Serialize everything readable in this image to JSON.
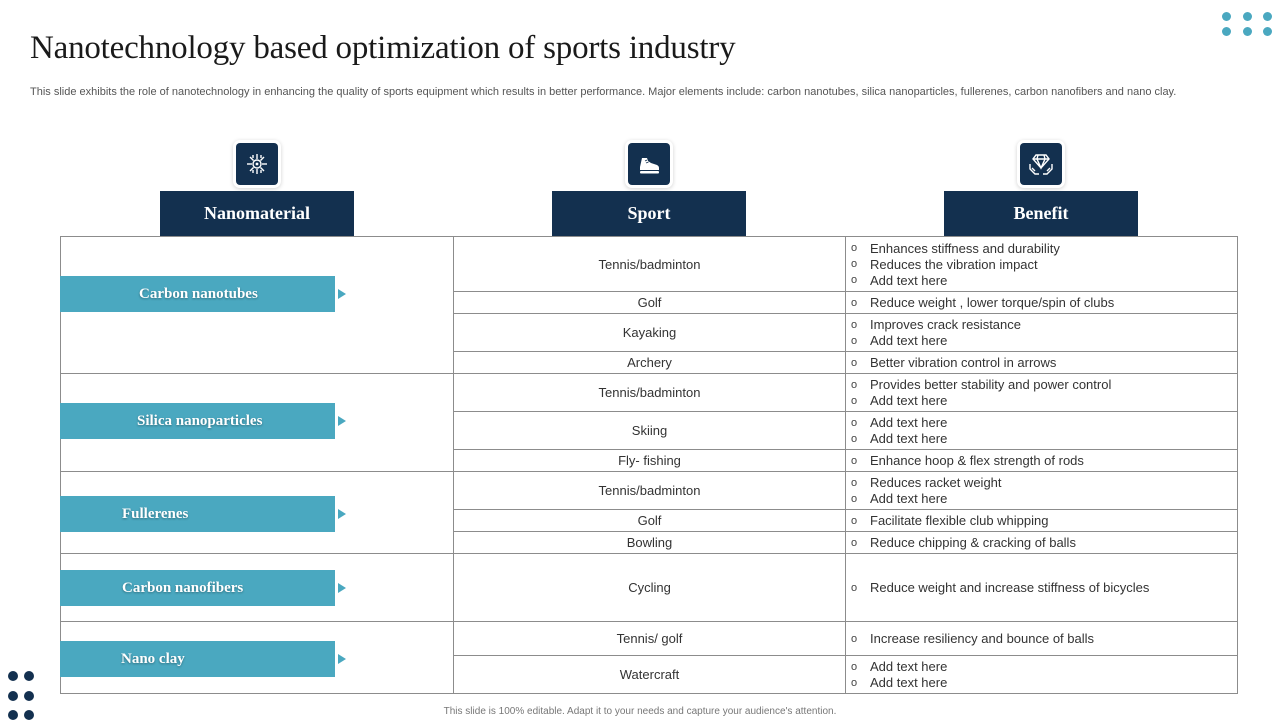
{
  "page": {
    "title": "Nanotechnology based optimization of sports industry",
    "subtitle": "This slide exhibits the role of nanotechnology in enhancing the quality of sports equipment which results in better performance. Major elements include: carbon nanotubes, silica nanoparticles, fullerenes, carbon nanofibers and nano clay.",
    "footer": "This slide is 100% editable.  Adapt it to your needs and capture your audience's attention."
  },
  "colors": {
    "navy": "#13304f",
    "teal": "#4aa8c0",
    "border": "#8c8c8c"
  },
  "columns": [
    {
      "label": "Nanomaterial",
      "icon": "circuit-chip-icon"
    },
    {
      "label": "Sport",
      "icon": "sneaker-icon"
    },
    {
      "label": "Benefit",
      "icon": "diamond-hands-icon"
    }
  ],
  "materials": [
    {
      "name": "Carbon nanotubes"
    },
    {
      "name": "Silica nanoparticles"
    },
    {
      "name": "Fullerenes"
    },
    {
      "name": "Carbon nanofibers"
    },
    {
      "name": "Nano clay"
    }
  ],
  "rows": [
    {
      "sport": "Tennis/badminton",
      "benefits": [
        "Enhances stiffness and durability",
        "Reduces the vibration  impact",
        "Add text here"
      ]
    },
    {
      "sport": "Golf",
      "benefits": [
        "Reduce weight , lower torque/spin of clubs"
      ]
    },
    {
      "sport": "Kayaking",
      "benefits": [
        "Improves  crack resistance",
        "Add text here"
      ]
    },
    {
      "sport": "Archery",
      "benefits": [
        "Better vibration  control in arrows"
      ]
    },
    {
      "sport": "Tennis/badminton",
      "benefits": [
        "Provides  better stability and power  control",
        "Add text here"
      ]
    },
    {
      "sport": "Skiing",
      "benefits": [
        "Add text here",
        "Add text here"
      ]
    },
    {
      "sport": "Fly- fishing",
      "benefits": [
        "Enhance hoop & flex strength of rods"
      ]
    },
    {
      "sport": "Tennis/badminton",
      "benefits": [
        "Reduces racket weight",
        "Add text here"
      ]
    },
    {
      "sport": "Golf",
      "benefits": [
        "Facilitate flexible club whipping"
      ]
    },
    {
      "sport": "Bowling",
      "benefits": [
        "Reduce chipping & cracking of balls"
      ]
    },
    {
      "sport": "Cycling",
      "benefits": [
        "Reduce weight and increase stiffness of bicycles"
      ]
    },
    {
      "sport": "Tennis/ golf",
      "benefits": [
        "Increase resiliency and bounce of balls"
      ]
    },
    {
      "sport": "Watercraft",
      "benefits": [
        "Add text here",
        "Add text here"
      ]
    }
  ]
}
